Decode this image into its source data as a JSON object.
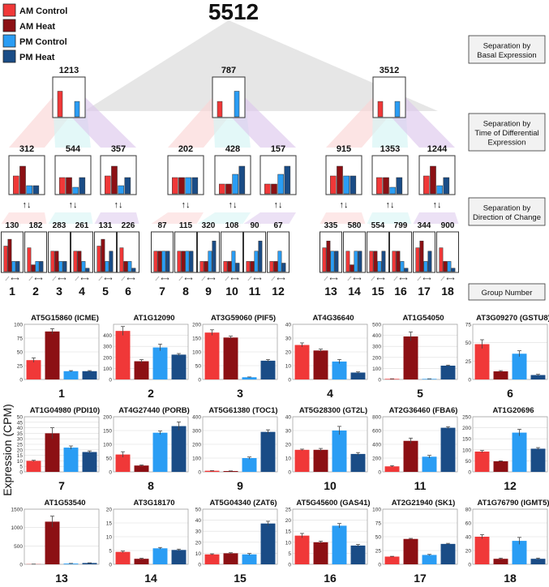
{
  "colors": {
    "am_control": "#f03838",
    "am_heat": "#8c1014",
    "pm_control": "#2a9df4",
    "pm_heat": "#1a4c86"
  },
  "legend": [
    {
      "label": "AM Control",
      "color": "#f03838"
    },
    {
      "label": "AM Heat",
      "color": "#8c1014"
    },
    {
      "label": "PM Control",
      "color": "#2a9df4"
    },
    {
      "label": "PM Heat",
      "color": "#1a4c86"
    }
  ],
  "total": "5512",
  "side_labels": [
    "Separation by\nBasal Expression",
    "Separation by\nTime of Differential\nExpression",
    "Separation by\nDirection of Change",
    "Group Number"
  ],
  "y_axis_label": "Expression (CPM)",
  "level1": [
    {
      "count": "1213",
      "bars": [
        0.75,
        0,
        0.45,
        0
      ]
    },
    {
      "count": "787",
      "bars": [
        0.45,
        0,
        0.75,
        0
      ]
    },
    {
      "count": "3512",
      "bars": [
        0.45,
        0,
        0.45,
        0
      ]
    }
  ],
  "level2": [
    {
      "count": "312",
      "bars": [
        0.55,
        0.85,
        0.25,
        0.25
      ],
      "arrow": "↑↓"
    },
    {
      "count": "544",
      "bars": [
        0.5,
        0.5,
        0.2,
        0.5
      ],
      "arrow": "↑↓"
    },
    {
      "count": "357",
      "bars": [
        0.55,
        0.85,
        0.25,
        0.5
      ],
      "arrow": "↑↓"
    },
    {
      "count": "202",
      "bars": [
        0.5,
        0.5,
        0.5,
        0.5
      ],
      "arrow": "↑↓"
    },
    {
      "count": "428",
      "bars": [
        0.3,
        0.3,
        0.6,
        0.85
      ],
      "arrow": "↑↓"
    },
    {
      "count": "157",
      "bars": [
        0.3,
        0.3,
        0.6,
        0.85
      ],
      "arrow": "↑↓"
    },
    {
      "count": "915",
      "bars": [
        0.55,
        0.85,
        0.55,
        0.55
      ],
      "arrow": "↑↓"
    },
    {
      "count": "1353",
      "bars": [
        0.5,
        0.5,
        0.2,
        0.5
      ],
      "arrow": "↑↓"
    },
    {
      "count": "1244",
      "bars": [
        0.55,
        0.85,
        0.25,
        0.5
      ],
      "arrow": "↑↓"
    }
  ],
  "level3": [
    {
      "count": "130",
      "bars": [
        0.75,
        0.95,
        0.3,
        0.3
      ]
    },
    {
      "count": "182",
      "bars": [
        0.7,
        0.2,
        0.3,
        0.3
      ]
    },
    {
      "count": "283",
      "bars": [
        0.6,
        0.6,
        0.3,
        0.3
      ]
    },
    {
      "count": "261",
      "bars": [
        0.6,
        0.6,
        0.3,
        0.1
      ]
    },
    {
      "count": "131",
      "bars": [
        0.75,
        0.95,
        0.3,
        0.6
      ]
    },
    {
      "count": "226",
      "bars": [
        0.7,
        0.3,
        0.3,
        0.1
      ]
    },
    {
      "count": "87",
      "bars": [
        0.6,
        0.6,
        0.6,
        0.6
      ]
    },
    {
      "count": "115",
      "bars": [
        0.6,
        0.6,
        0.6,
        0.6
      ]
    },
    {
      "count": "320",
      "bars": [
        0.3,
        0.3,
        0.6,
        0.9
      ]
    },
    {
      "count": "108",
      "bars": [
        0.3,
        0.3,
        0.6,
        0.25
      ]
    },
    {
      "count": "90",
      "bars": [
        0.3,
        0.3,
        0.6,
        0.9
      ]
    },
    {
      "count": "67",
      "bars": [
        0.3,
        0.3,
        0.6,
        0.25
      ]
    },
    {
      "count": "335",
      "bars": [
        0.7,
        0.9,
        0.6,
        0.6
      ]
    },
    {
      "count": "580",
      "bars": [
        0.6,
        0.2,
        0.6,
        0.6
      ]
    },
    {
      "count": "554",
      "bars": [
        0.6,
        0.6,
        0.3,
        0.6
      ]
    },
    {
      "count": "799",
      "bars": [
        0.6,
        0.6,
        0.3,
        0.1
      ]
    },
    {
      "count": "344",
      "bars": [
        0.7,
        0.9,
        0.3,
        0.6
      ]
    },
    {
      "count": "900",
      "bars": [
        0.7,
        0.3,
        0.3,
        0.1
      ]
    }
  ],
  "group_numbers": [
    "1",
    "2",
    "3",
    "4",
    "5",
    "6",
    "7",
    "8",
    "9",
    "10",
    "11",
    "12",
    "13",
    "14",
    "15",
    "16",
    "17",
    "18"
  ],
  "chart_data": [
    {
      "type": "bar",
      "group": "1",
      "title": "AT5G15860 (ICME)",
      "categories": [
        "AM Control",
        "AM Heat",
        "PM Control",
        "PM Heat"
      ],
      "values": [
        35,
        87,
        15,
        15
      ],
      "errors": [
        4,
        5,
        1,
        1
      ],
      "ylim": [
        0,
        100
      ],
      "yticks": [
        0,
        25,
        50,
        75,
        100
      ],
      "ylabel": "Expression (CPM)"
    },
    {
      "type": "bar",
      "group": "2",
      "title": "AT1G12090",
      "categories": [
        "AM Control",
        "AM Heat",
        "PM Control",
        "PM Heat"
      ],
      "values": [
        440,
        165,
        290,
        225
      ],
      "errors": [
        40,
        15,
        30,
        10
      ],
      "ylim": [
        0,
        500
      ],
      "yticks": [
        0,
        100,
        200,
        300,
        400
      ],
      "ylabel": "Expression (CPM)"
    },
    {
      "type": "bar",
      "group": "3",
      "title": "AT3G59060 (PIF5)",
      "categories": [
        "AM Control",
        "AM Heat",
        "PM Control",
        "PM Heat"
      ],
      "values": [
        170,
        152,
        8,
        68
      ],
      "errors": [
        10,
        5,
        1,
        4
      ],
      "ylim": [
        0,
        200
      ],
      "yticks": [
        0,
        50,
        100,
        150,
        200
      ],
      "ylabel": "Expression (CPM)"
    },
    {
      "type": "bar",
      "group": "4",
      "title": "AT4G36640",
      "categories": [
        "AM Control",
        "AM Heat",
        "PM Control",
        "PM Heat"
      ],
      "values": [
        25,
        21,
        13,
        5
      ],
      "errors": [
        1.5,
        1,
        1.5,
        0.5
      ],
      "ylim": [
        0,
        40
      ],
      "yticks": [
        0,
        10,
        20,
        30,
        40
      ],
      "ylabel": "Expression (CPM)"
    },
    {
      "type": "bar",
      "group": "5",
      "title": "AT1G54050",
      "categories": [
        "AM Control",
        "AM Heat",
        "PM Control",
        "PM Heat"
      ],
      "values": [
        5,
        390,
        5,
        125
      ],
      "errors": [
        1,
        40,
        1,
        5
      ],
      "ylim": [
        0,
        500
      ],
      "yticks": [
        0,
        100,
        200,
        300,
        400,
        500
      ],
      "ylabel": "Expression (CPM)"
    },
    {
      "type": "bar",
      "group": "6",
      "title": "AT3G09270 (GSTU8)",
      "categories": [
        "AM Control",
        "AM Heat",
        "PM Control",
        "PM Heat"
      ],
      "values": [
        48,
        11,
        35,
        6
      ],
      "errors": [
        6,
        1,
        4,
        1
      ],
      "ylim": [
        0,
        75
      ],
      "yticks": [
        0,
        25,
        50,
        75
      ],
      "ylabel": "Expression (CPM)"
    },
    {
      "type": "bar",
      "group": "7",
      "title": "AT1G04980 (PDI10)",
      "categories": [
        "AM Control",
        "AM Heat",
        "PM Control",
        "PM Heat"
      ],
      "values": [
        10,
        35,
        22,
        18
      ],
      "errors": [
        0.5,
        5,
        1.5,
        1
      ],
      "ylim": [
        0,
        50
      ],
      "yticks": [
        0,
        5,
        10,
        15,
        20,
        25,
        30,
        35,
        40,
        45,
        50
      ],
      "ylabel": "Expression (CPM)"
    },
    {
      "type": "bar",
      "group": "8",
      "title": "AT4G27440 (PORB)",
      "categories": [
        "AM Control",
        "AM Heat",
        "PM Control",
        "PM Heat"
      ],
      "values": [
        63,
        23,
        142,
        166
      ],
      "errors": [
        10,
        2,
        6,
        15
      ],
      "ylim": [
        0,
        200
      ],
      "yticks": [
        0,
        50,
        100,
        150,
        200
      ],
      "ylabel": "Expression (CPM)"
    },
    {
      "type": "bar",
      "group": "9",
      "title": "AT5G61380 (TOC1)",
      "categories": [
        "AM Control",
        "AM Heat",
        "PM Control",
        "PM Heat"
      ],
      "values": [
        8,
        6,
        100,
        290
      ],
      "errors": [
        1,
        1,
        8,
        15
      ],
      "ylim": [
        0,
        400
      ],
      "yticks": [
        0,
        100,
        200,
        300,
        400
      ],
      "ylabel": "Expression (CPM)"
    },
    {
      "type": "bar",
      "group": "10",
      "title": "AT5G28300 (GT2L)",
      "categories": [
        "AM Control",
        "AM Heat",
        "PM Control",
        "PM Heat"
      ],
      "values": [
        16,
        16,
        30,
        13
      ],
      "errors": [
        0.5,
        1,
        3,
        1
      ],
      "ylim": [
        0,
        40
      ],
      "yticks": [
        0,
        10,
        20,
        30,
        40
      ],
      "ylabel": "Expression (CPM)"
    },
    {
      "type": "bar",
      "group": "11",
      "title": "AT2G36460 (FBA6)",
      "categories": [
        "AM Control",
        "AM Heat",
        "PM Control",
        "PM Heat"
      ],
      "values": [
        80,
        450,
        220,
        640
      ],
      "errors": [
        10,
        40,
        20,
        15
      ],
      "ylim": [
        0,
        800
      ],
      "yticks": [
        0,
        200,
        400,
        600,
        800
      ],
      "ylabel": "Expression (CPM)"
    },
    {
      "type": "bar",
      "group": "12",
      "title": "AT1G20696",
      "categories": [
        "AM Control",
        "AM Heat",
        "PM Control",
        "PM Heat"
      ],
      "values": [
        92,
        48,
        178,
        105
      ],
      "errors": [
        5,
        2,
        15,
        5
      ],
      "ylim": [
        0,
        250
      ],
      "yticks": [
        0,
        50,
        100,
        150,
        200,
        250
      ],
      "ylabel": "Expression (CPM)"
    },
    {
      "type": "bar",
      "group": "13",
      "title": "AT1G53540",
      "categories": [
        "AM Control",
        "AM Heat",
        "PM Control",
        "PM Heat"
      ],
      "values": [
        5,
        1160,
        20,
        35
      ],
      "errors": [
        1,
        150,
        5,
        5
      ],
      "ylim": [
        0,
        1500
      ],
      "yticks": [
        0,
        500,
        1000,
        1500
      ],
      "ylabel": "Expression (CPM)"
    },
    {
      "type": "bar",
      "group": "14",
      "title": "AT3G18170",
      "categories": [
        "AM Control",
        "AM Heat",
        "PM Control",
        "PM Heat"
      ],
      "values": [
        4.5,
        2,
        5.8,
        5.2
      ],
      "errors": [
        0.3,
        0.2,
        0.3,
        0.3
      ],
      "ylim": [
        0,
        20
      ],
      "yticks": [
        0,
        5,
        10,
        15,
        20
      ],
      "ylabel": "Expression (CPM)"
    },
    {
      "type": "bar",
      "group": "15",
      "title": "AT5G04340 (ZAT6)",
      "categories": [
        "AM Control",
        "AM Heat",
        "PM Control",
        "PM Heat"
      ],
      "values": [
        9,
        10,
        9,
        37
      ],
      "errors": [
        0.5,
        0.5,
        0.8,
        2
      ],
      "ylim": [
        0,
        50
      ],
      "yticks": [
        0,
        10,
        20,
        30,
        40,
        50
      ],
      "ylabel": "Expression (CPM)"
    },
    {
      "type": "bar",
      "group": "16",
      "title": "AT5G45600 (GAS41)",
      "categories": [
        "AM Control",
        "AM Heat",
        "PM Control",
        "PM Heat"
      ],
      "values": [
        13,
        10,
        17.5,
        8.5
      ],
      "errors": [
        1,
        0.5,
        1,
        0.5
      ],
      "ylim": [
        0,
        25
      ],
      "yticks": [
        0,
        5,
        10,
        15,
        20,
        25
      ],
      "ylabel": "Expression (CPM)"
    },
    {
      "type": "bar",
      "group": "17",
      "title": "AT2G21940 (SK1)",
      "categories": [
        "AM Control",
        "AM Heat",
        "PM Control",
        "PM Heat"
      ],
      "values": [
        14,
        46,
        17,
        37
      ],
      "errors": [
        0.5,
        1,
        1,
        1
      ],
      "ylim": [
        0,
        100
      ],
      "yticks": [
        0,
        25,
        50,
        75,
        100
      ],
      "ylabel": "Expression (CPM)"
    },
    {
      "type": "bar",
      "group": "18",
      "title": "AT1G76790 (IGMT5)",
      "categories": [
        "AM Control",
        "AM Heat",
        "PM Control",
        "PM Heat"
      ],
      "values": [
        40,
        8,
        34,
        8
      ],
      "errors": [
        3,
        1,
        5,
        1
      ],
      "ylim": [
        0,
        80
      ],
      "yticks": [
        0,
        20,
        40,
        60,
        80
      ],
      "ylabel": "Expression (CPM)"
    }
  ]
}
